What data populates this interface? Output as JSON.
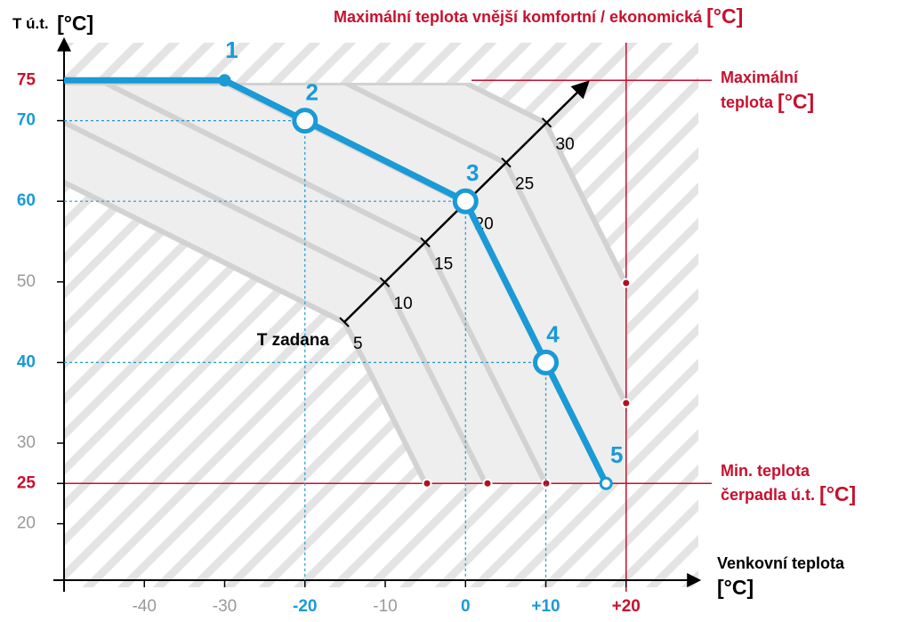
{
  "chart_data": {
    "type": "line",
    "y_label": "T ú.t.",
    "y_unit": "[°C]",
    "x_label": "Venkovní teplota",
    "x_unit": "[°C]",
    "x": [
      -50,
      -30,
      -20,
      0,
      10,
      17.5
    ],
    "series": [
      {
        "color": "#1a9ad6",
        "values": [
          75,
          75,
          70,
          60,
          40,
          25
        ]
      }
    ],
    "point_labels": [
      null,
      "1",
      "2",
      "3",
      "4",
      "5"
    ],
    "markers": [
      null,
      "dot",
      "ring",
      "ring",
      "ring",
      "small-ring"
    ],
    "xlim": [
      -50,
      29
    ],
    "ylim": [
      13,
      80
    ],
    "xticks": [
      -40,
      -30,
      -20,
      -10,
      0,
      {
        "value": 10,
        "label": "+10"
      },
      {
        "value": 20,
        "label": "+20"
      }
    ],
    "xtick_colors": [
      "#999999",
      "#999999",
      "#1a9ad6",
      "#999999",
      "#1a9ad6",
      "#1a9ad6",
      "#c8102e"
    ],
    "yticks": [
      20,
      25,
      30,
      40,
      50,
      60,
      70,
      75
    ],
    "ytick_colors": [
      "#999999",
      "#c8102e",
      "#999999",
      "#1a9ad6",
      "#999999",
      "#1a9ad6",
      "#1a9ad6",
      "#c8102e"
    ],
    "reference_color": "#c8102e",
    "reference_lines": [
      {
        "axis": "x",
        "value": 20,
        "text": [
          "Maximální teplota vnější komfortní / ekonomická"
        ],
        "unit": "[°C]"
      },
      {
        "axis": "y",
        "value": 75,
        "text": [
          "Maximální",
          "teplota"
        ],
        "unit": "[°C]"
      },
      {
        "axis": "y",
        "value": 25,
        "text": [
          "Min. teplota",
          "čerpadla ú.t."
        ],
        "unit": "[°C]"
      }
    ],
    "setpoint_axis": {
      "label": "T zadana",
      "lim": [
        5,
        35
      ],
      "ticks": [
        5,
        10,
        15,
        20,
        25,
        30
      ]
    }
  }
}
